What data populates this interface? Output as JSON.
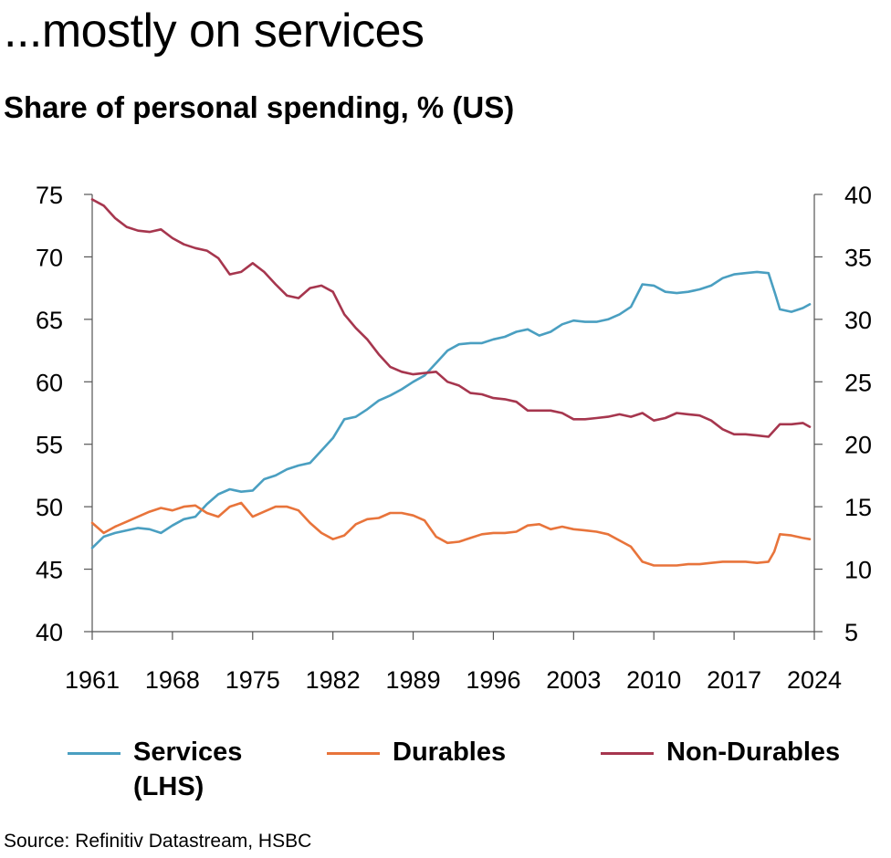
{
  "header": {
    "headline": "...mostly on services",
    "subtitle": "Share of personal spending, % (US)"
  },
  "source": "Source: Refinitiv Datastream, HSBC",
  "chart_data": {
    "type": "line",
    "title": "Share of personal spending, % (US)",
    "x_ticks": [
      "1961",
      "1968",
      "1975",
      "1982",
      "1989",
      "1996",
      "2003",
      "2010",
      "2017",
      "2024"
    ],
    "xlim": [
      1961,
      2024
    ],
    "y_left": {
      "ylim": [
        40,
        75
      ],
      "ticks": [
        40,
        45,
        50,
        55,
        60,
        65,
        70,
        75
      ]
    },
    "y_right": {
      "ylim": [
        5,
        40
      ],
      "ticks": [
        5,
        10,
        15,
        20,
        25,
        30,
        35,
        40
      ]
    },
    "grid": false,
    "legend_position": "bottom",
    "series": [
      {
        "name": "Services",
        "name_line2": "(LHS)",
        "axis": "left",
        "color": "#4a9fc1",
        "points": [
          [
            1961,
            46.7
          ],
          [
            1962,
            47.6
          ],
          [
            1963,
            47.9
          ],
          [
            1964,
            48.1
          ],
          [
            1965,
            48.3
          ],
          [
            1966,
            48.2
          ],
          [
            1967,
            47.9
          ],
          [
            1968,
            48.5
          ],
          [
            1969,
            49.0
          ],
          [
            1970,
            49.2
          ],
          [
            1971,
            50.2
          ],
          [
            1972,
            51.0
          ],
          [
            1973,
            51.4
          ],
          [
            1974,
            51.2
          ],
          [
            1975,
            51.3
          ],
          [
            1976,
            52.2
          ],
          [
            1977,
            52.5
          ],
          [
            1978,
            53.0
          ],
          [
            1979,
            53.3
          ],
          [
            1980,
            53.5
          ],
          [
            1981,
            54.5
          ],
          [
            1982,
            55.5
          ],
          [
            1983,
            57.0
          ],
          [
            1984,
            57.2
          ],
          [
            1985,
            57.8
          ],
          [
            1986,
            58.5
          ],
          [
            1987,
            58.9
          ],
          [
            1988,
            59.4
          ],
          [
            1989,
            60.0
          ],
          [
            1990,
            60.5
          ],
          [
            1991,
            61.5
          ],
          [
            1992,
            62.5
          ],
          [
            1993,
            63.0
          ],
          [
            1994,
            63.1
          ],
          [
            1995,
            63.1
          ],
          [
            1996,
            63.4
          ],
          [
            1997,
            63.6
          ],
          [
            1998,
            64.0
          ],
          [
            1999,
            64.2
          ],
          [
            2000,
            63.7
          ],
          [
            2001,
            64.0
          ],
          [
            2002,
            64.6
          ],
          [
            2003,
            64.9
          ],
          [
            2004,
            64.8
          ],
          [
            2005,
            64.8
          ],
          [
            2006,
            65.0
          ],
          [
            2007,
            65.4
          ],
          [
            2008,
            66.0
          ],
          [
            2009,
            67.8
          ],
          [
            2010,
            67.7
          ],
          [
            2011,
            67.2
          ],
          [
            2012,
            67.1
          ],
          [
            2013,
            67.2
          ],
          [
            2014,
            67.4
          ],
          [
            2015,
            67.7
          ],
          [
            2016,
            68.3
          ],
          [
            2017,
            68.6
          ],
          [
            2018,
            68.7
          ],
          [
            2019,
            68.8
          ],
          [
            2020,
            68.7
          ],
          [
            2020.6,
            67.0
          ],
          [
            2021,
            65.8
          ],
          [
            2022,
            65.6
          ],
          [
            2023,
            65.9
          ],
          [
            2023.6,
            66.2
          ]
        ]
      },
      {
        "name": "Durables",
        "axis": "right",
        "color": "#e8743b",
        "points": [
          [
            1961,
            13.7
          ],
          [
            1962,
            12.9
          ],
          [
            1963,
            13.4
          ],
          [
            1964,
            13.8
          ],
          [
            1965,
            14.2
          ],
          [
            1966,
            14.6
          ],
          [
            1967,
            14.9
          ],
          [
            1968,
            14.7
          ],
          [
            1969,
            15.0
          ],
          [
            1970,
            15.1
          ],
          [
            1971,
            14.5
          ],
          [
            1972,
            14.2
          ],
          [
            1973,
            15.0
          ],
          [
            1974,
            15.3
          ],
          [
            1975,
            14.2
          ],
          [
            1976,
            14.6
          ],
          [
            1977,
            15.0
          ],
          [
            1978,
            15.0
          ],
          [
            1979,
            14.7
          ],
          [
            1980,
            13.7
          ],
          [
            1981,
            12.9
          ],
          [
            1982,
            12.4
          ],
          [
            1983,
            12.7
          ],
          [
            1984,
            13.6
          ],
          [
            1985,
            14.0
          ],
          [
            1986,
            14.1
          ],
          [
            1987,
            14.5
          ],
          [
            1988,
            14.5
          ],
          [
            1989,
            14.3
          ],
          [
            1990,
            13.9
          ],
          [
            1991,
            12.6
          ],
          [
            1992,
            12.1
          ],
          [
            1993,
            12.2
          ],
          [
            1994,
            12.5
          ],
          [
            1995,
            12.8
          ],
          [
            1996,
            12.9
          ],
          [
            1997,
            12.9
          ],
          [
            1998,
            13.0
          ],
          [
            1999,
            13.5
          ],
          [
            2000,
            13.6
          ],
          [
            2001,
            13.2
          ],
          [
            2002,
            13.4
          ],
          [
            2003,
            13.2
          ],
          [
            2004,
            13.1
          ],
          [
            2005,
            13.0
          ],
          [
            2006,
            12.8
          ],
          [
            2007,
            12.3
          ],
          [
            2008,
            11.8
          ],
          [
            2009,
            10.6
          ],
          [
            2010,
            10.3
          ],
          [
            2011,
            10.3
          ],
          [
            2012,
            10.3
          ],
          [
            2013,
            10.4
          ],
          [
            2014,
            10.4
          ],
          [
            2015,
            10.5
          ],
          [
            2016,
            10.6
          ],
          [
            2017,
            10.6
          ],
          [
            2018,
            10.6
          ],
          [
            2019,
            10.5
          ],
          [
            2020,
            10.6
          ],
          [
            2020.5,
            11.4
          ],
          [
            2021,
            12.8
          ],
          [
            2022,
            12.7
          ],
          [
            2023,
            12.5
          ],
          [
            2023.6,
            12.4
          ]
        ]
      },
      {
        "name": "Non-Durables",
        "axis": "right",
        "color": "#a6364e",
        "points": [
          [
            1961,
            39.6
          ],
          [
            1962,
            39.1
          ],
          [
            1963,
            38.1
          ],
          [
            1964,
            37.4
          ],
          [
            1965,
            37.1
          ],
          [
            1966,
            37.0
          ],
          [
            1967,
            37.2
          ],
          [
            1968,
            36.5
          ],
          [
            1969,
            36.0
          ],
          [
            1970,
            35.7
          ],
          [
            1971,
            35.5
          ],
          [
            1972,
            34.9
          ],
          [
            1973,
            33.6
          ],
          [
            1974,
            33.8
          ],
          [
            1975,
            34.5
          ],
          [
            1976,
            33.8
          ],
          [
            1977,
            32.8
          ],
          [
            1978,
            31.9
          ],
          [
            1979,
            31.7
          ],
          [
            1980,
            32.5
          ],
          [
            1981,
            32.7
          ],
          [
            1982,
            32.2
          ],
          [
            1983,
            30.4
          ],
          [
            1984,
            29.3
          ],
          [
            1985,
            28.4
          ],
          [
            1986,
            27.2
          ],
          [
            1987,
            26.2
          ],
          [
            1988,
            25.8
          ],
          [
            1989,
            25.6
          ],
          [
            1990,
            25.7
          ],
          [
            1991,
            25.8
          ],
          [
            1992,
            25.0
          ],
          [
            1993,
            24.7
          ],
          [
            1994,
            24.1
          ],
          [
            1995,
            24.0
          ],
          [
            1996,
            23.7
          ],
          [
            1997,
            23.6
          ],
          [
            1998,
            23.4
          ],
          [
            1999,
            22.7
          ],
          [
            2000,
            22.7
          ],
          [
            2001,
            22.7
          ],
          [
            2002,
            22.5
          ],
          [
            2003,
            22.0
          ],
          [
            2004,
            22.0
          ],
          [
            2005,
            22.1
          ],
          [
            2006,
            22.2
          ],
          [
            2007,
            22.4
          ],
          [
            2008,
            22.2
          ],
          [
            2009,
            22.5
          ],
          [
            2010,
            21.9
          ],
          [
            2011,
            22.1
          ],
          [
            2012,
            22.5
          ],
          [
            2013,
            22.4
          ],
          [
            2014,
            22.3
          ],
          [
            2015,
            21.9
          ],
          [
            2016,
            21.2
          ],
          [
            2017,
            20.8
          ],
          [
            2018,
            20.8
          ],
          [
            2019,
            20.7
          ],
          [
            2020,
            20.6
          ],
          [
            2021,
            21.6
          ],
          [
            2022,
            21.6
          ],
          [
            2023,
            21.7
          ],
          [
            2023.6,
            21.4
          ]
        ]
      }
    ]
  }
}
